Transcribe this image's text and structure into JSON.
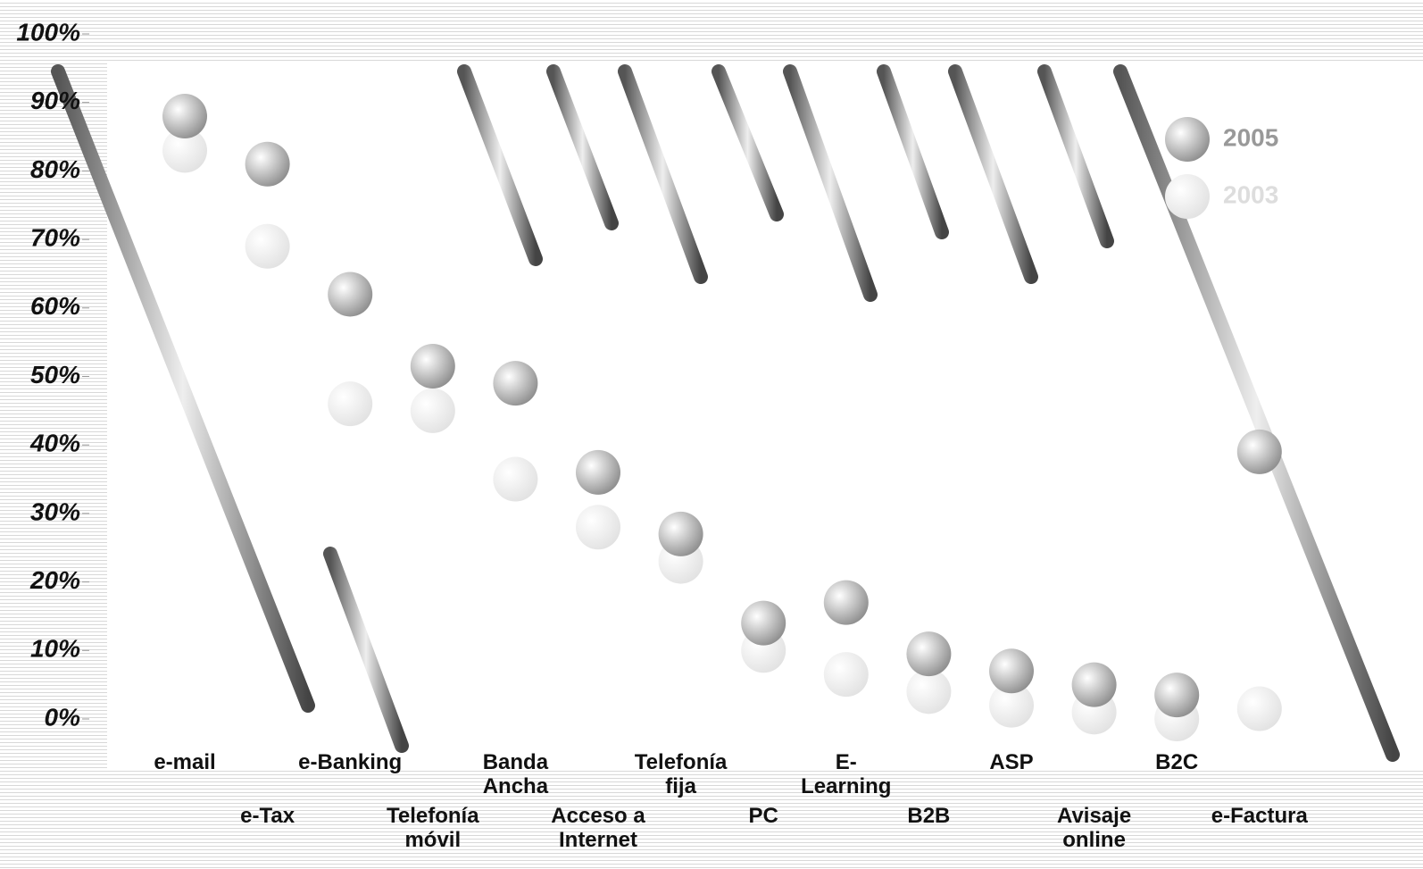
{
  "chart_data": {
    "type": "dot",
    "categories": [
      "e-mail",
      "e-Tax",
      "e-Banking",
      "Telefonía móvil",
      "Banda Ancha",
      "Acceso a Internet",
      "Telefonía fija",
      "PC",
      "E-Learning",
      "B2B",
      "ASP",
      "Avisaje online",
      "B2C",
      "e-Factura"
    ],
    "series": [
      {
        "name": "2005",
        "color": "#8f8f8f",
        "values": [
          88,
          81,
          62,
          51.5,
          49,
          36,
          27,
          14,
          17,
          9.5,
          7,
          5,
          3.5,
          39
        ]
      },
      {
        "name": "2003",
        "color": "#e2e2e2",
        "values": [
          83,
          69,
          46,
          45,
          35,
          28,
          23,
          10,
          6.5,
          4,
          2,
          1,
          0,
          1.5
        ]
      }
    ],
    "ylim": [
      0,
      100
    ],
    "yticks": [
      {
        "value": 0,
        "label": "0%"
      },
      {
        "value": 10,
        "label": "10%"
      },
      {
        "value": 20,
        "label": "20%"
      },
      {
        "value": 30,
        "label": "30%"
      },
      {
        "value": 40,
        "label": "40%"
      },
      {
        "value": 50,
        "label": "50%"
      },
      {
        "value": 60,
        "label": "60%"
      },
      {
        "value": 70,
        "label": "70%"
      },
      {
        "value": 80,
        "label": "80%"
      },
      {
        "value": 90,
        "label": "90%"
      },
      {
        "value": 100,
        "label": "100%"
      }
    ],
    "legend": "top-right"
  }
}
